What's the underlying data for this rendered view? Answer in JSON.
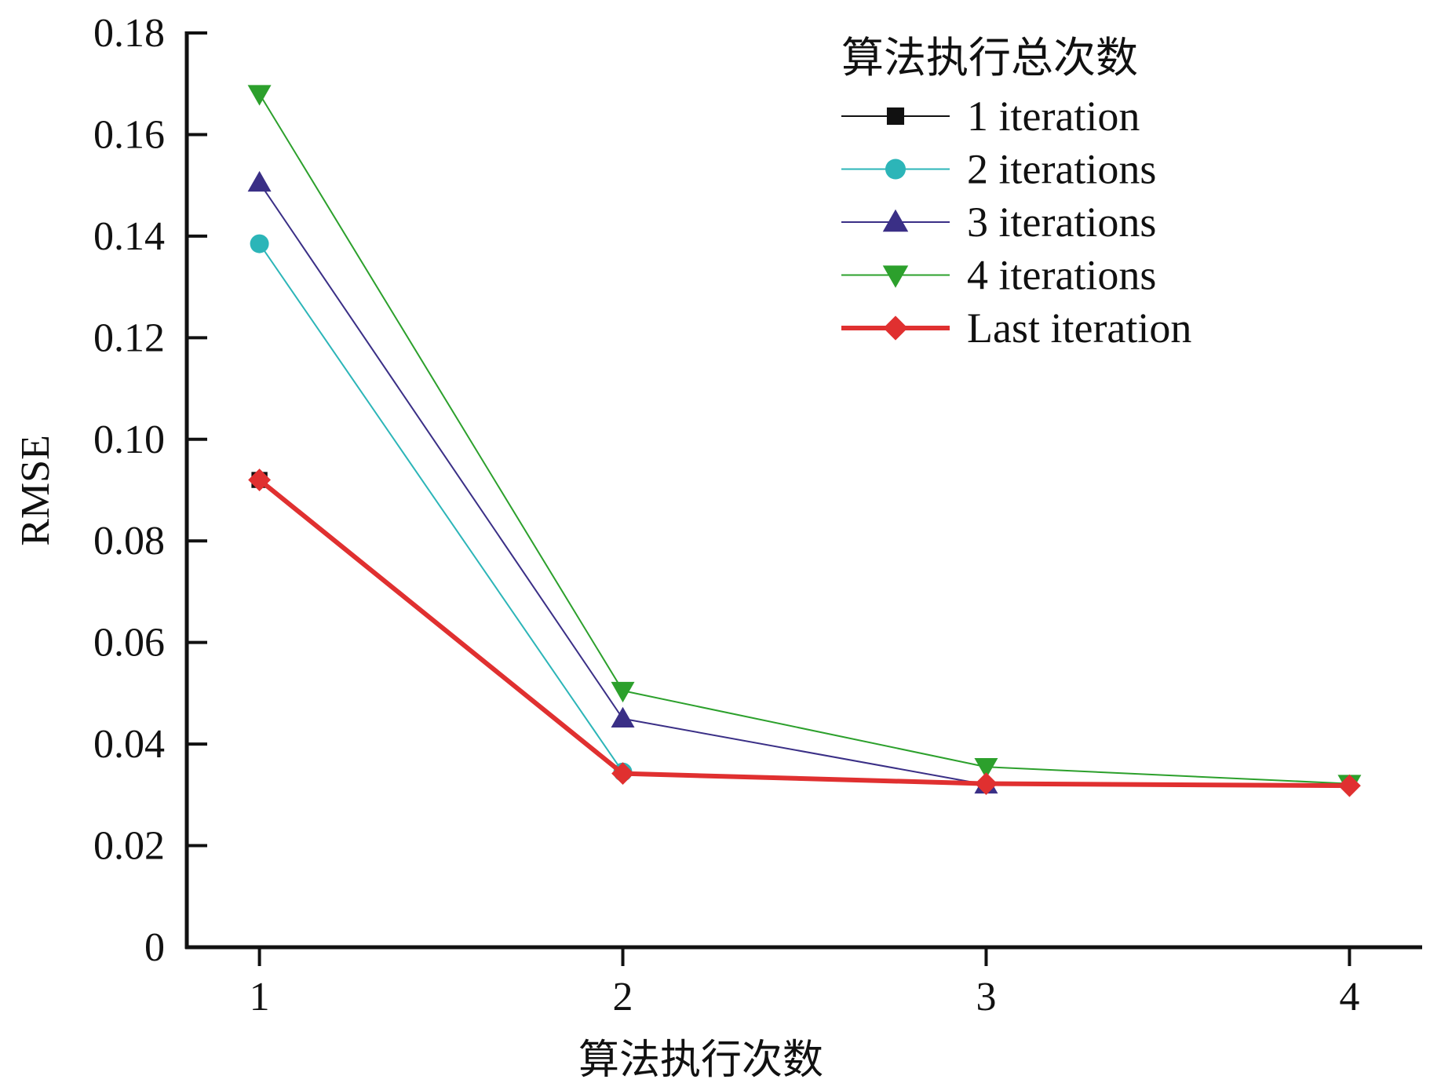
{
  "chart_data": {
    "type": "line",
    "title": "",
    "xlabel": "算法执行次数",
    "ylabel": "RMSE",
    "x": [
      1,
      2,
      3,
      4
    ],
    "x_tick_labels": [
      "1",
      "2",
      "3",
      "4"
    ],
    "xlim": [
      0.8,
      4.2
    ],
    "ylim": [
      0,
      0.18
    ],
    "y_ticks": [
      0,
      0.02,
      0.04,
      0.06,
      0.08,
      0.1,
      0.12,
      0.14,
      0.16,
      0.18
    ],
    "y_tick_labels": [
      "0",
      "0.02",
      "0.04",
      "0.06",
      "0.08",
      "0.10",
      "0.12",
      "0.14",
      "0.16",
      "0.18"
    ],
    "grid": false,
    "legend": {
      "title": "算法执行总次数",
      "placement": "top-right"
    },
    "series": [
      {
        "name": "1 iteration",
        "values": [
          0.092,
          null,
          null,
          null
        ],
        "color": "#111111",
        "marker": "square",
        "line_width": 2
      },
      {
        "name": "2 iterations",
        "values": [
          0.1385,
          0.0345,
          null,
          null
        ],
        "color": "#2cb5b8",
        "marker": "circle",
        "line_width": 2
      },
      {
        "name": "3 iterations",
        "values": [
          0.1505,
          0.045,
          0.032,
          null
        ],
        "color": "#3a2f86",
        "marker": "triangle-up",
        "line_width": 2
      },
      {
        "name": "4 iterations",
        "values": [
          0.168,
          0.0505,
          0.0355,
          0.0322
        ],
        "color": "#2ca02c",
        "marker": "triangle-down",
        "line_width": 2
      },
      {
        "name": "Last iteration",
        "values": [
          0.092,
          0.0342,
          0.0322,
          0.0318
        ],
        "color": "#e03030",
        "marker": "diamond",
        "line_width": 6
      }
    ]
  }
}
